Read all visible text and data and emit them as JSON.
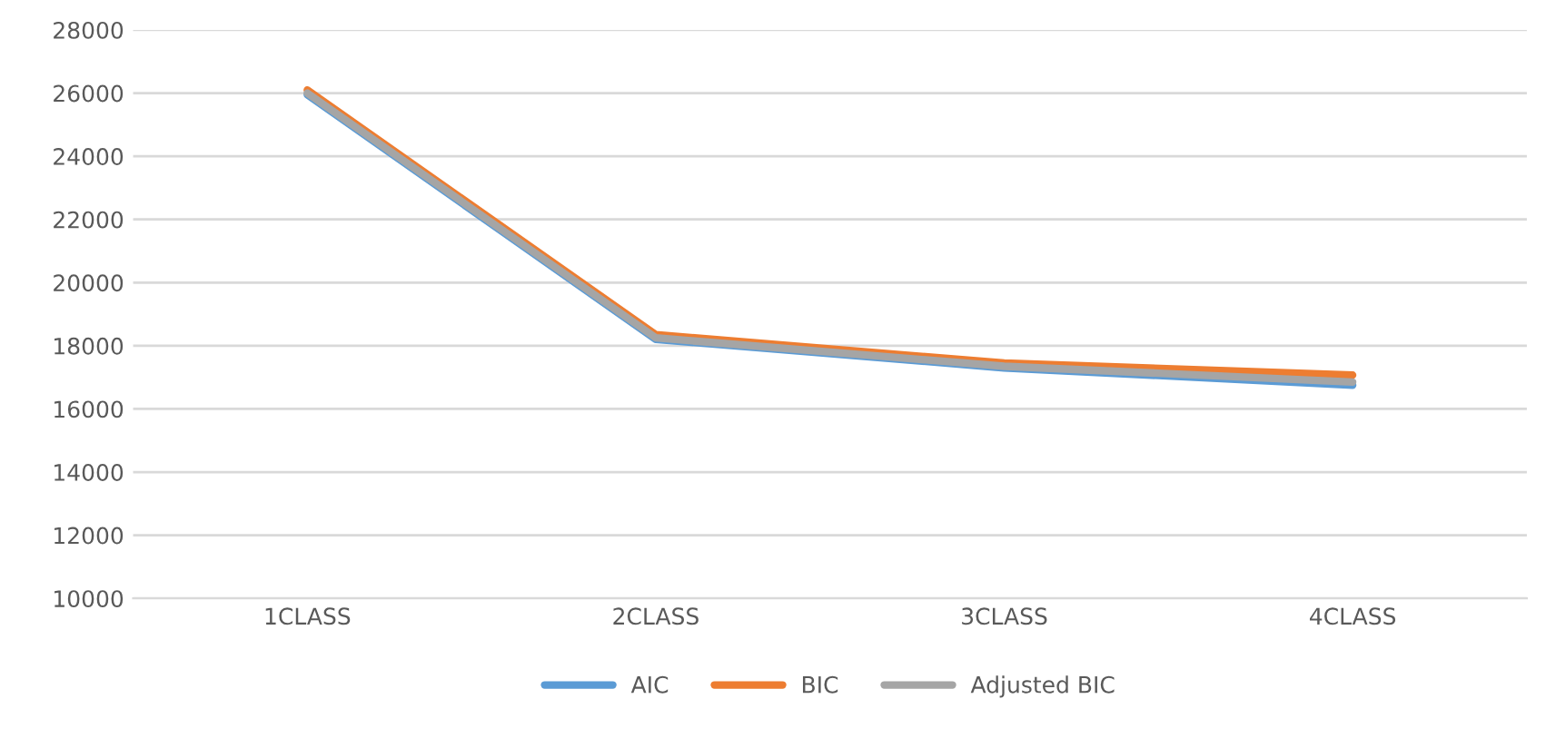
{
  "chart_data": {
    "type": "line",
    "categories": [
      "1CLASS",
      "2CLASS",
      "3CLASS",
      "4CLASS"
    ],
    "series": [
      {
        "name": "AIC",
        "color": "#5b9bd5",
        "values": [
          25950,
          18200,
          17300,
          16750
        ]
      },
      {
        "name": "BIC",
        "color": "#ed7d31",
        "values": [
          26100,
          18350,
          17450,
          17070
        ]
      },
      {
        "name": "Adjusted BIC",
        "color": "#a5a5a5",
        "values": [
          26000,
          18250,
          17350,
          16850
        ]
      }
    ],
    "ylim": [
      10000,
      28000
    ],
    "yticks": [
      10000,
      12000,
      14000,
      16000,
      18000,
      20000,
      22000,
      24000,
      26000,
      28000
    ],
    "grid": "y",
    "legend": "bottom",
    "marker": "none",
    "line_style": "solid"
  }
}
